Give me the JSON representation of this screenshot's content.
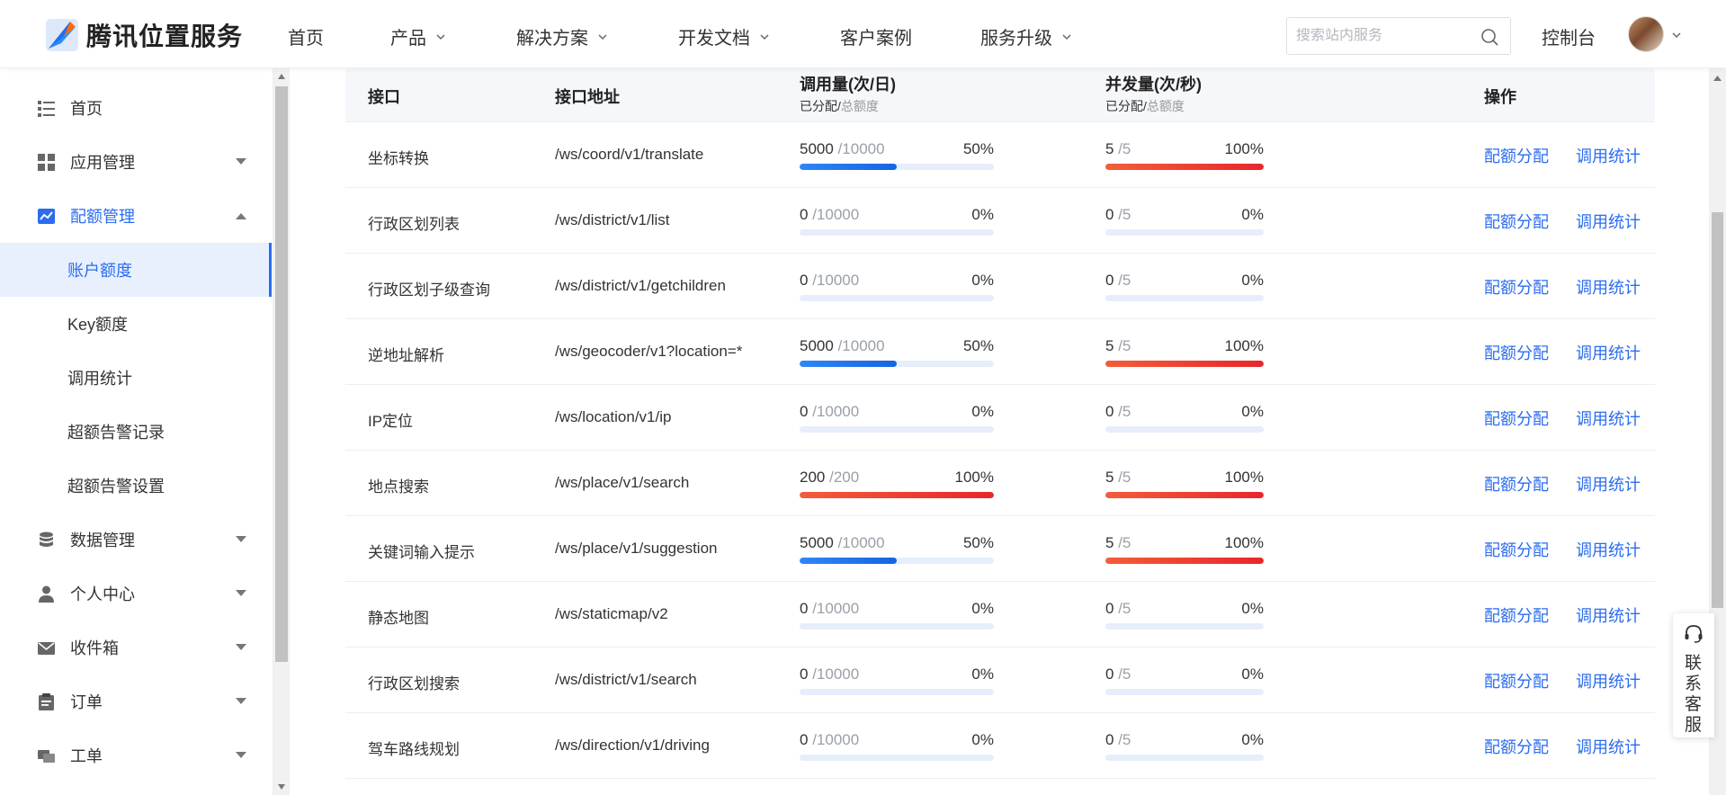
{
  "header": {
    "logo_text": "腾讯位置服务",
    "nav": [
      {
        "label": "首页",
        "dropdown": false
      },
      {
        "label": "产品",
        "dropdown": true
      },
      {
        "label": "解决方案",
        "dropdown": true
      },
      {
        "label": "开发文档",
        "dropdown": true
      },
      {
        "label": "客户案例",
        "dropdown": false
      },
      {
        "label": "服务升级",
        "dropdown": true
      }
    ],
    "search_placeholder": "搜索站内服务",
    "console_label": "控制台"
  },
  "sidebar": {
    "items": [
      {
        "label": "首页",
        "icon": "list-icon"
      },
      {
        "label": "应用管理",
        "icon": "grid-icon"
      },
      {
        "label": "配额管理",
        "icon": "chart-icon"
      },
      {
        "label": "数据管理",
        "icon": "database-icon"
      },
      {
        "label": "个人中心",
        "icon": "user-icon"
      },
      {
        "label": "收件箱",
        "icon": "mail-icon"
      },
      {
        "label": "订单",
        "icon": "clipboard-icon"
      },
      {
        "label": "工单",
        "icon": "ticket-icon"
      }
    ],
    "sub_items": [
      {
        "label": "账户额度",
        "selected": true
      },
      {
        "label": "Key额度",
        "selected": false
      },
      {
        "label": "调用统计",
        "selected": false
      },
      {
        "label": "超额告警记录",
        "selected": false
      },
      {
        "label": "超额告警设置",
        "selected": false
      }
    ]
  },
  "table": {
    "headers": {
      "api": "接口",
      "path": "接口地址",
      "calls": "调用量(次/日)",
      "calls_sub_a": "已分配/",
      "calls_sub_b": "总额度",
      "concurrency": "并发量(次/秒)",
      "conc_sub_a": "已分配/",
      "conc_sub_b": "总额度",
      "actions": "操作"
    },
    "action_labels": {
      "allocate": "配额分配",
      "stats": "调用统计"
    },
    "rows": [
      {
        "api": "坐标转换",
        "path": "/ws/coord/v1/translate",
        "calls_used": "5000",
        "calls_total": "/10000",
        "calls_pct": "50%",
        "calls_frac": 0.5,
        "conc_used": "5",
        "conc_total": "/5",
        "conc_pct": "100%",
        "conc_frac": 1.0
      },
      {
        "api": "行政区划列表",
        "path": "/ws/district/v1/list",
        "calls_used": "0",
        "calls_total": "/10000",
        "calls_pct": "0%",
        "calls_frac": 0,
        "conc_used": "0",
        "conc_total": "/5",
        "conc_pct": "0%",
        "conc_frac": 0
      },
      {
        "api": "行政区划子级查询",
        "path": "/ws/district/v1/getchildren",
        "calls_used": "0",
        "calls_total": "/10000",
        "calls_pct": "0%",
        "calls_frac": 0,
        "conc_used": "0",
        "conc_total": "/5",
        "conc_pct": "0%",
        "conc_frac": 0
      },
      {
        "api": "逆地址解析",
        "path": "/ws/geocoder/v1?location=*",
        "calls_used": "5000",
        "calls_total": "/10000",
        "calls_pct": "50%",
        "calls_frac": 0.5,
        "conc_used": "5",
        "conc_total": "/5",
        "conc_pct": "100%",
        "conc_frac": 1.0
      },
      {
        "api": "IP定位",
        "path": "/ws/location/v1/ip",
        "calls_used": "0",
        "calls_total": "/10000",
        "calls_pct": "0%",
        "calls_frac": 0,
        "conc_used": "0",
        "conc_total": "/5",
        "conc_pct": "0%",
        "conc_frac": 0
      },
      {
        "api": "地点搜索",
        "path": "/ws/place/v1/search",
        "calls_used": "200",
        "calls_total": "/200",
        "calls_pct": "100%",
        "calls_frac": 1.0,
        "conc_used": "5",
        "conc_total": "/5",
        "conc_pct": "100%",
        "conc_frac": 1.0
      },
      {
        "api": "关键词输入提示",
        "path": "/ws/place/v1/suggestion",
        "calls_used": "5000",
        "calls_total": "/10000",
        "calls_pct": "50%",
        "calls_frac": 0.5,
        "conc_used": "5",
        "conc_total": "/5",
        "conc_pct": "100%",
        "conc_frac": 1.0
      },
      {
        "api": "静态地图",
        "path": "/ws/staticmap/v2",
        "calls_used": "0",
        "calls_total": "/10000",
        "calls_pct": "0%",
        "calls_frac": 0,
        "conc_used": "0",
        "conc_total": "/5",
        "conc_pct": "0%",
        "conc_frac": 0
      },
      {
        "api": "行政区划搜索",
        "path": "/ws/district/v1/search",
        "calls_used": "0",
        "calls_total": "/10000",
        "calls_pct": "0%",
        "calls_frac": 0,
        "conc_used": "0",
        "conc_total": "/5",
        "conc_pct": "0%",
        "conc_frac": 0
      },
      {
        "api": "驾车路线规划",
        "path": "/ws/direction/v1/driving",
        "calls_used": "0",
        "calls_total": "/10000",
        "calls_pct": "0%",
        "calls_frac": 0,
        "conc_used": "0",
        "conc_total": "/5",
        "conc_pct": "0%",
        "conc_frac": 0
      }
    ]
  },
  "service_widget": {
    "label": "联系客服",
    "icon": "headset-icon"
  },
  "colors": {
    "accent": "#2b6cf0",
    "full": "#e8262b",
    "partial": "#1565e0"
  }
}
